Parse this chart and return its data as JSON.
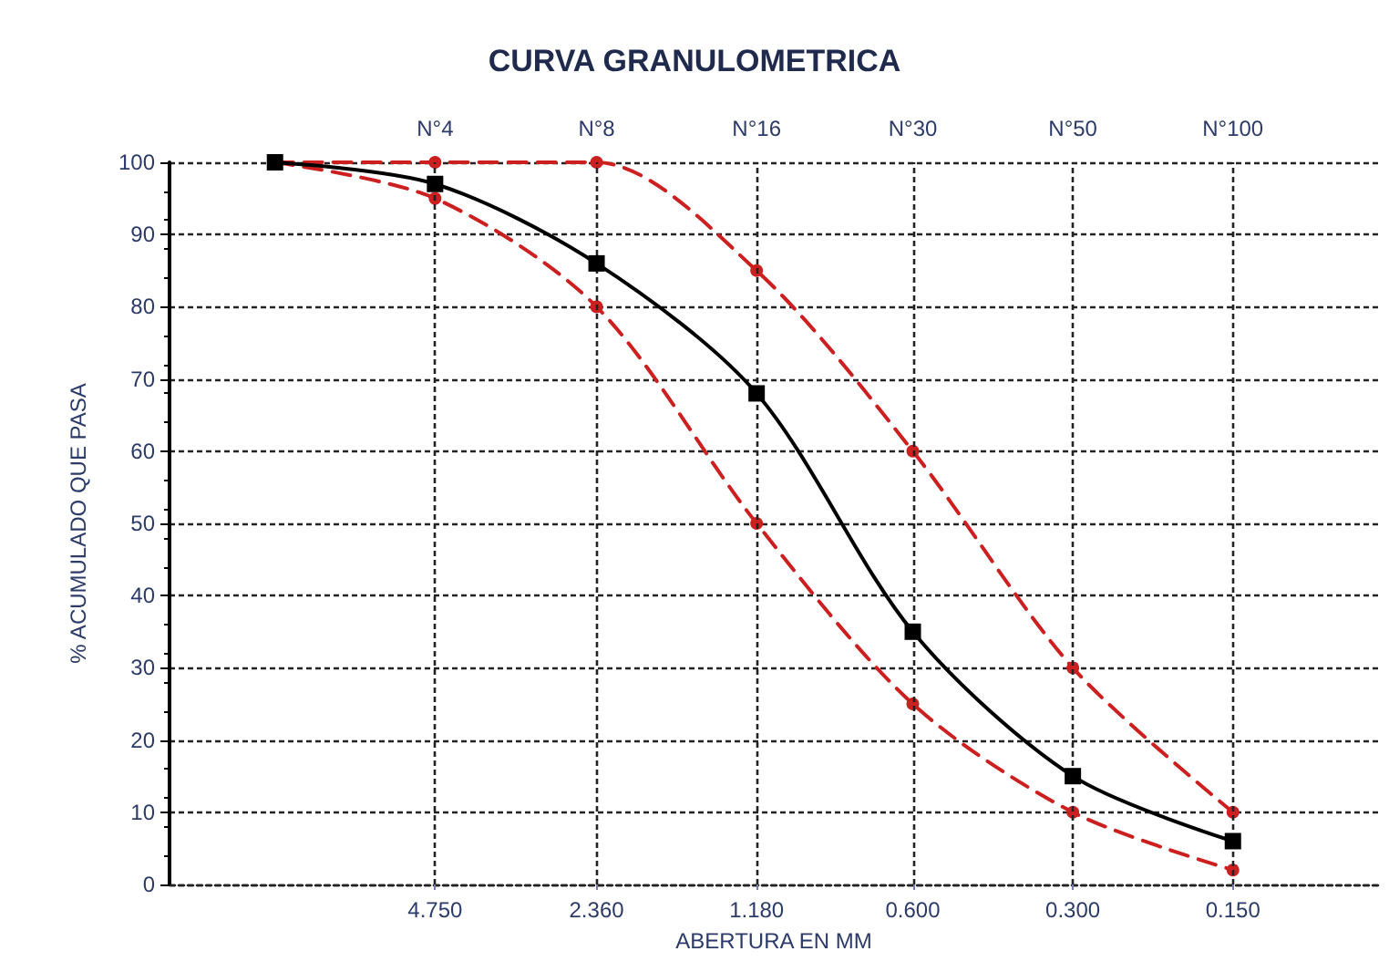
{
  "chart_data": {
    "type": "line",
    "title": "CURVA GRANULOMETRICA",
    "xlabel": "ABERTURA EN MM",
    "ylabel": "% ACUMULADO QUE PASA",
    "x": [
      9.5,
      4.75,
      2.36,
      1.18,
      0.6,
      0.3,
      0.15
    ],
    "series": [
      {
        "color": "#cc1f1f",
        "values": [
          100,
          100,
          100,
          85,
          60,
          30,
          10
        ],
        "line_style": "dashed",
        "marker": "circle"
      },
      {
        "color": "#cc1f1f",
        "values": [
          100,
          95,
          80,
          50,
          25,
          10,
          2
        ],
        "line_style": "dashed",
        "marker": "circle"
      },
      {
        "color": "#000000",
        "values": [
          100,
          97,
          86,
          68,
          35,
          15,
          6
        ],
        "line_style": "solid",
        "marker": "square"
      }
    ],
    "log": "x",
    "xlim": [
      15,
      0.08
    ],
    "xticks": [
      {
        "value": 4.75,
        "label": "4.750"
      },
      {
        "value": 2.36,
        "label": "2.360"
      },
      {
        "value": 1.18,
        "label": "1.180"
      },
      {
        "value": 0.6,
        "label": "0.600"
      },
      {
        "value": 0.3,
        "label": "0.300"
      },
      {
        "value": 0.15,
        "label": "0.150"
      }
    ],
    "annotations": [
      "N°4",
      "N°8",
      "N°16",
      "N°30",
      "N°50",
      "N°100"
    ],
    "ylim": [
      0,
      100
    ],
    "yticks": [
      0,
      10,
      20,
      30,
      40,
      50,
      60,
      70,
      80,
      90,
      100
    ],
    "grid": true
  }
}
